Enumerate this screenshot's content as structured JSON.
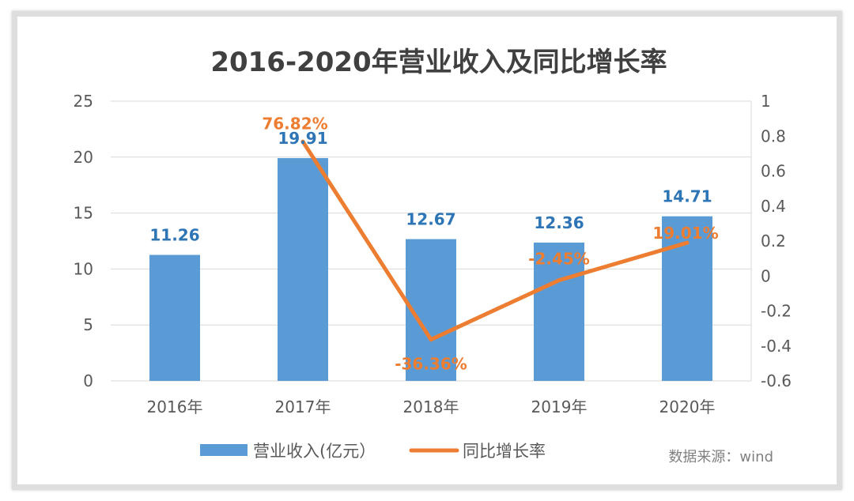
{
  "chart_data": {
    "type": "bar+line",
    "title": "2016-2020年营业收入及同比增长率",
    "categories": [
      "2016年",
      "2017年",
      "2018年",
      "2019年",
      "2020年"
    ],
    "series": [
      {
        "name": "营业收入(亿元）",
        "type": "bar",
        "axis": "left",
        "values": [
          11.26,
          19.91,
          12.67,
          12.36,
          14.71
        ],
        "labels": [
          "11.26",
          "19.91",
          "12.67",
          "12.36",
          "14.71"
        ],
        "color": "#5b9bd5"
      },
      {
        "name": "同比增长率",
        "type": "line",
        "axis": "right",
        "values": [
          null,
          0.7682,
          -0.3636,
          -0.0245,
          0.1901
        ],
        "labels": [
          "",
          "76.82%",
          "-36.36%",
          "-2.45%",
          "19.01%"
        ],
        "color": "#ed7d31"
      }
    ],
    "left_axis": {
      "ylim": [
        0,
        25
      ],
      "ticks": [
        "0",
        "5",
        "10",
        "15",
        "20",
        "25"
      ]
    },
    "right_axis": {
      "ylim": [
        -0.6,
        1
      ],
      "ticks": [
        "-0.6",
        "-0.4",
        "-0.2",
        "0",
        "0.2",
        "0.4",
        "0.6",
        "0.8",
        "1"
      ]
    },
    "grid": true,
    "legend_placement": "bottom",
    "source_note": "数据来源：wind",
    "bar_label_color": "#2e75b6"
  }
}
